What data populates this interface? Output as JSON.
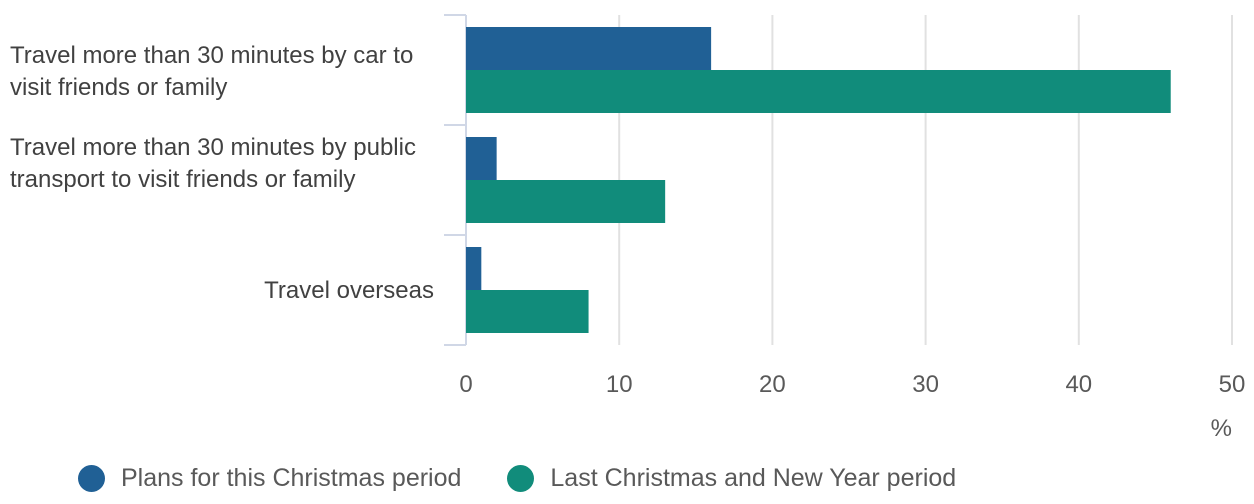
{
  "chart_data": {
    "type": "bar",
    "orientation": "horizontal",
    "categories": [
      "Travel more than 30 minutes by car to visit friends or family",
      "Travel more than 30 minutes by public transport to visit friends or family",
      "Travel overseas"
    ],
    "series": [
      {
        "name": "Plans for this Christmas period",
        "values": [
          16,
          2,
          1
        ],
        "color": "#206095"
      },
      {
        "name": "Last Christmas and New Year period",
        "values": [
          46,
          13,
          8
        ],
        "color": "#118c7b"
      }
    ],
    "xlim": [
      0,
      50
    ],
    "xticks": [
      "0",
      "10",
      "20",
      "30",
      "40",
      "50"
    ],
    "xlabel": "%",
    "grid": "vertical",
    "legend_position": "bottom"
  }
}
